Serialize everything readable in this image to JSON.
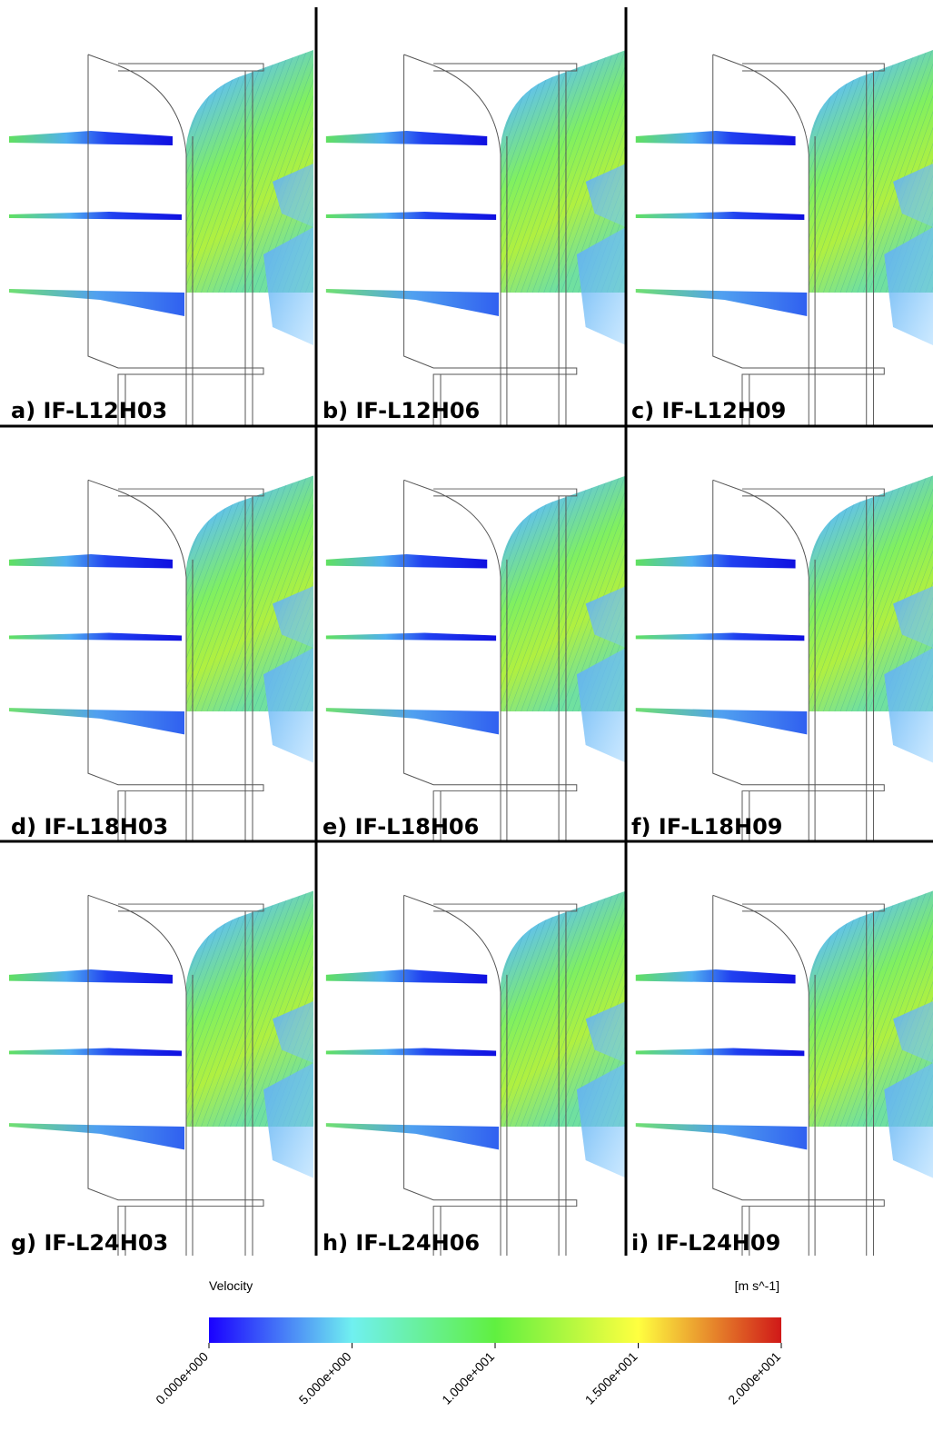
{
  "panels": [
    {
      "label": "a) IF-L12H03"
    },
    {
      "label": "b) IF-L12H06"
    },
    {
      "label": "c) IF-L12H09"
    },
    {
      "label": "d) IF-L18H03"
    },
    {
      "label": "e) IF-L18H06"
    },
    {
      "label": "f) IF-L18H09"
    },
    {
      "label": "g) IF-L24H03"
    },
    {
      "label": "h) IF-L24H06"
    },
    {
      "label": "i) IF-L24H09"
    }
  ],
  "colorbar": {
    "title": "Velocity",
    "unit": "[m s^-1]",
    "range": [
      0,
      20
    ],
    "ticks": [
      {
        "value": 0,
        "label": "0.000e+000"
      },
      {
        "value": 5,
        "label": "5.000e+000"
      },
      {
        "value": 10,
        "label": "1.000e+001"
      },
      {
        "value": 15,
        "label": "1.500e+001"
      },
      {
        "value": 20,
        "label": "2.000e+001"
      }
    ]
  }
}
